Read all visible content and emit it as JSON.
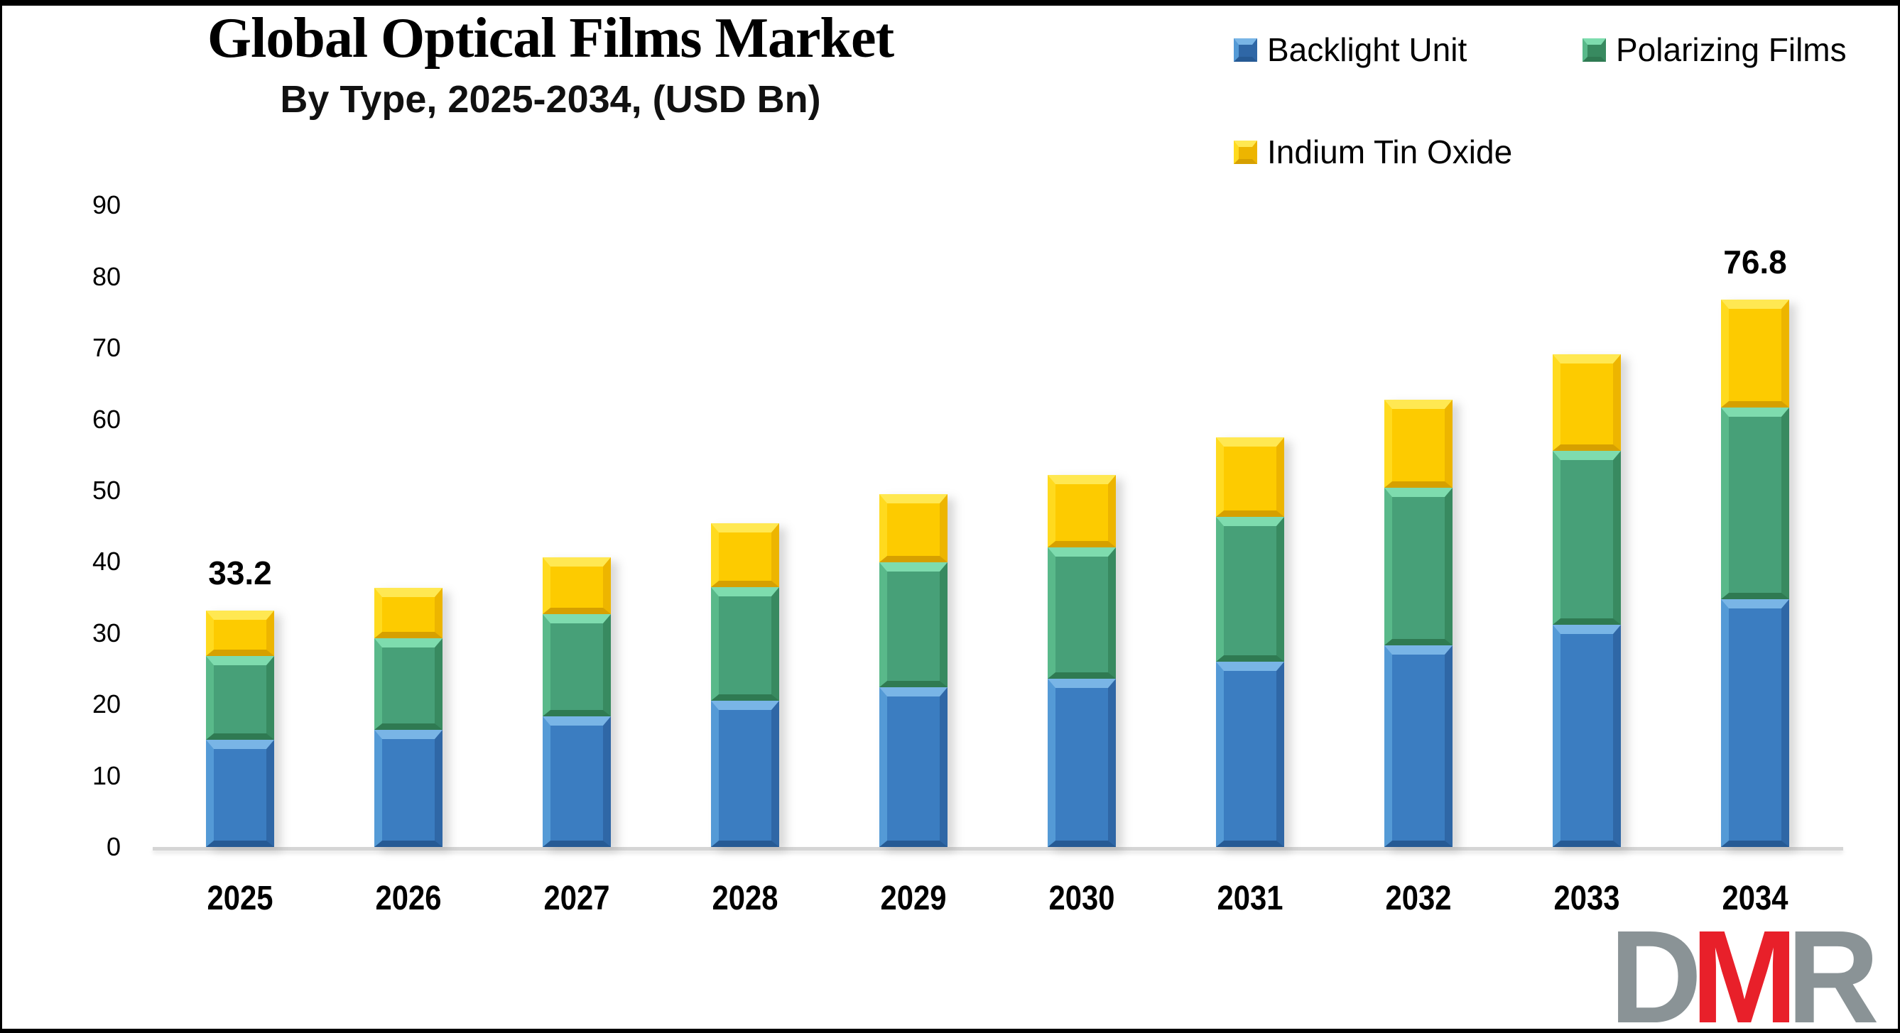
{
  "page": {
    "background": "#ffffff",
    "border_color": "#000000"
  },
  "header": {
    "title": "Global Optical Films Market",
    "subtitle": "By Type, 2025-2034, (USD Bn)"
  },
  "legend": {
    "items": [
      {
        "label": "Backlight Unit"
      },
      {
        "label": "Polarizing Films"
      },
      {
        "label": "Indium Tin Oxide"
      }
    ]
  },
  "chart_data": {
    "type": "bar",
    "stacked": true,
    "title": "Global Optical Films Market",
    "subtitle": "By Type, 2025-2034, (USD Bn)",
    "categories": [
      "2025",
      "2026",
      "2027",
      "2028",
      "2029",
      "2030",
      "2031",
      "2032",
      "2033",
      "2034"
    ],
    "series": [
      {
        "name": "Backlight Unit",
        "values": [
          15.0,
          16.4,
          18.3,
          20.5,
          22.4,
          23.6,
          26.0,
          28.3,
          31.2,
          34.8
        ],
        "palette": {
          "light": "#79b5e6",
          "mlight": "#549ad6",
          "main": "#3b7dc1",
          "mdark": "#2f67a6",
          "dark": "#265policy"
        }
      },
      {
        "name": "Polarizing Films",
        "values": [
          11.8,
          12.9,
          14.4,
          16.0,
          17.5,
          18.4,
          20.3,
          22.1,
          24.4,
          26.9
        ],
        "palette": {
          "light": "#7edcae",
          "mlight": "#59b98a",
          "main": "#47a078",
          "mdark": "#388a60",
          "dark": "#2f7a52"
        }
      },
      {
        "name": "Indium Tin Oxide",
        "values": [
          6.4,
          7.1,
          7.9,
          8.9,
          9.6,
          10.2,
          11.2,
          12.3,
          13.5,
          15.1
        ],
        "palette": {
          "light": "#ffe852",
          "mlight": "#ffda1e",
          "main": "#fdcb00",
          "mdark": "#edb500",
          "dark": "#d6a000"
        }
      }
    ],
    "totals": [
      33.2,
      36.4,
      40.6,
      45.4,
      49.5,
      52.2,
      57.5,
      62.7,
      69.1,
      76.8
    ],
    "data_labels": {
      "first": "33.2",
      "last": "76.8"
    },
    "ylim": [
      0,
      90
    ],
    "yticks": [
      0,
      10,
      20,
      30,
      40,
      50,
      60,
      70,
      80,
      90
    ],
    "grid": false,
    "legend_position": "top-right"
  },
  "logo": {
    "letters": [
      {
        "char": "D",
        "color": "#8a9396"
      },
      {
        "char": "M",
        "color": "#e8202a"
      },
      {
        "char": "R",
        "color": "#8a9396"
      }
    ]
  }
}
